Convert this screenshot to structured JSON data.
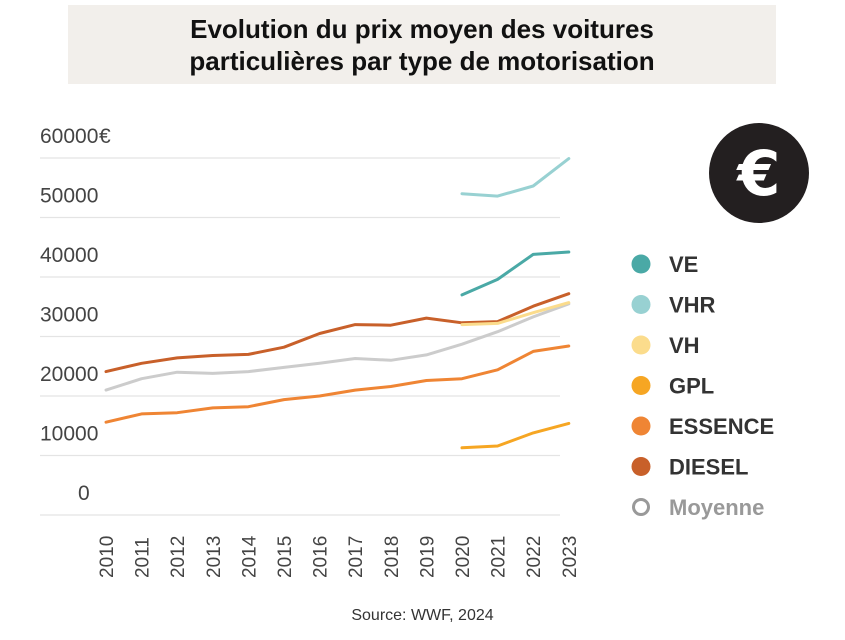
{
  "header": {
    "title_line1": "Evolution du prix moyen des voitures",
    "title_line2": "particulières par type de motorisation"
  },
  "icon": {
    "name": "euro-icon",
    "glyph": "€"
  },
  "source": "Source: WWF, 2024",
  "chart_data": {
    "type": "line",
    "title": "Evolution du prix moyen des voitures particulières par type de motorisation",
    "unit_label": "€",
    "x": [
      "2010",
      "2011",
      "2012",
      "2013",
      "2014",
      "2015",
      "2016",
      "2017",
      "2018",
      "2019",
      "2020",
      "2021",
      "2022",
      "2023"
    ],
    "yticks": [
      0,
      10000,
      20000,
      30000,
      40000,
      50000,
      60000
    ],
    "ylim": [
      0,
      60000
    ],
    "grid": true,
    "legend_position": "right",
    "series": [
      {
        "name": "VE",
        "color": "#4aa9a6",
        "marker": "filled",
        "values": [
          null,
          null,
          null,
          null,
          null,
          null,
          null,
          null,
          null,
          null,
          37000,
          39600,
          43800,
          44200
        ]
      },
      {
        "name": "VHR",
        "color": "#98d1d2",
        "marker": "filled",
        "values": [
          null,
          null,
          null,
          null,
          null,
          null,
          null,
          null,
          null,
          null,
          54000,
          53600,
          55300,
          59900
        ]
      },
      {
        "name": "VH",
        "color": "#fbdc8c",
        "marker": "filled",
        "values": [
          null,
          null,
          null,
          null,
          null,
          null,
          null,
          null,
          null,
          null,
          32000,
          32200,
          34000,
          35700
        ]
      },
      {
        "name": "GPL",
        "color": "#f6a623",
        "marker": "filled",
        "values": [
          null,
          null,
          null,
          null,
          null,
          null,
          null,
          null,
          null,
          null,
          11300,
          11600,
          13800,
          15400
        ]
      },
      {
        "name": "ESSENCE",
        "color": "#ef8534",
        "marker": "filled",
        "values": [
          15600,
          17000,
          17200,
          18000,
          18200,
          19400,
          20000,
          21000,
          21600,
          22600,
          22900,
          24400,
          27500,
          28400
        ]
      },
      {
        "name": "DIESEL",
        "color": "#c8602a",
        "marker": "filled",
        "values": [
          24100,
          25500,
          26400,
          26800,
          27000,
          28200,
          30500,
          32000,
          31900,
          33100,
          32300,
          32500,
          35100,
          37200
        ]
      },
      {
        "name": "Moyenne",
        "color": "#cccccc",
        "marker": "hollow",
        "values": [
          21000,
          22900,
          24000,
          23800,
          24100,
          24800,
          25500,
          26300,
          26000,
          26900,
          28700,
          30800,
          33300,
          35500
        ]
      }
    ]
  }
}
